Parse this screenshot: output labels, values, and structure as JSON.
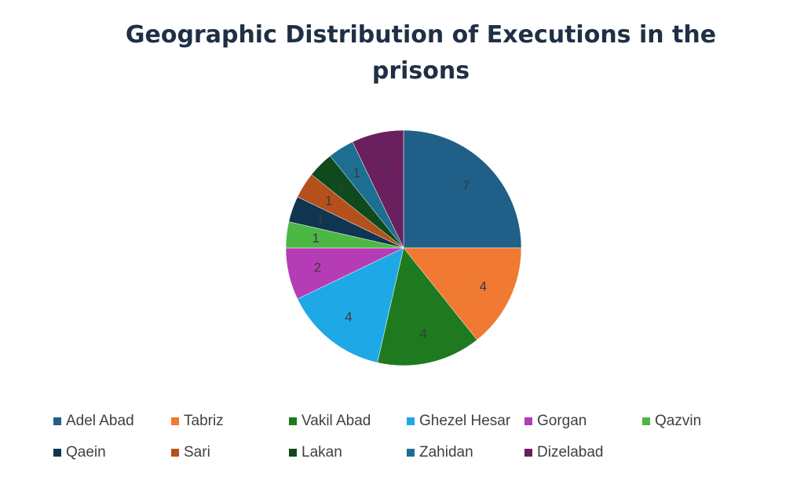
{
  "chart_data": {
    "type": "pie",
    "title": "Geographic Distribution of Executions in the prisons",
    "categories": [
      "Adel Abad",
      "Tabriz",
      "Vakil Abad",
      "Ghezel Hesar",
      "Gorgan",
      "Qazvin",
      "Qaein",
      "Sari",
      "Lakan",
      "Zahidan",
      "Dizelabad"
    ],
    "values": [
      7,
      4,
      4,
      4,
      2,
      1,
      1,
      1,
      1,
      1,
      2
    ],
    "data_labels": [
      "7",
      "4",
      "4",
      "4",
      "2",
      "1",
      "1",
      "1",
      "1",
      "1",
      "2"
    ],
    "colors": [
      "#205f87",
      "#f07a32",
      "#1f7a1f",
      "#1ea9e6",
      "#b63cb6",
      "#4cb844",
      "#0f3550",
      "#b4501c",
      "#0f4a1c",
      "#1d6f91",
      "#6a1f5e"
    ],
    "legend_position": "bottom",
    "grid": false
  }
}
